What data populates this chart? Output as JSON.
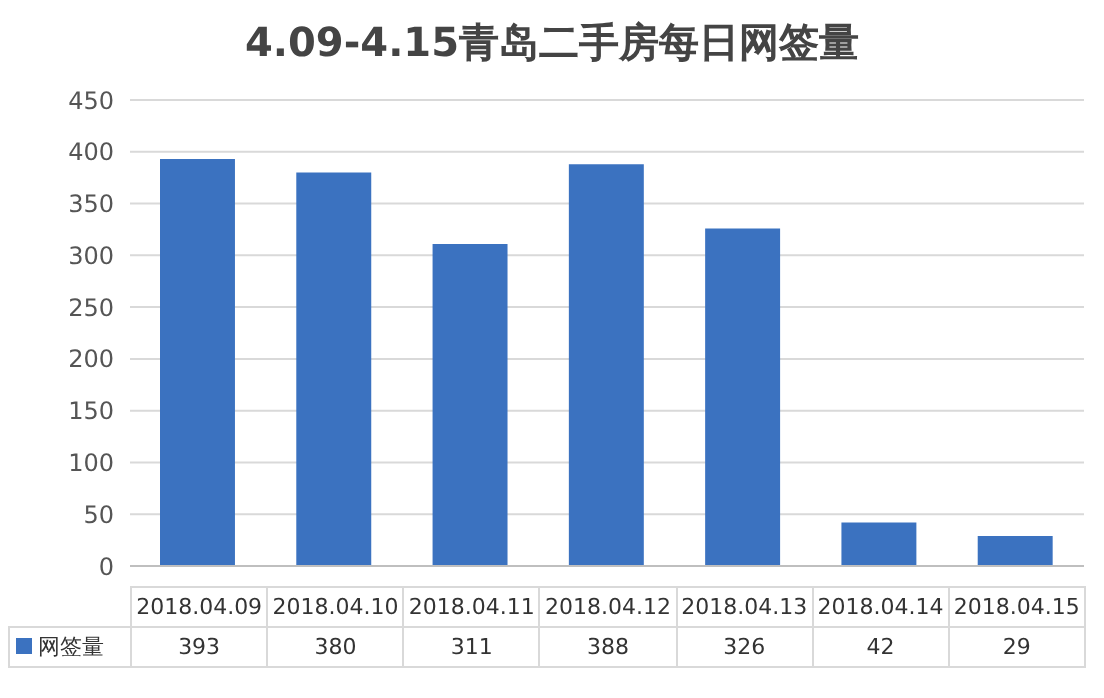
{
  "chart_data": {
    "type": "bar",
    "title": "4.09-4.15青岛二手房每日网签量",
    "categories": [
      "2018.04.09",
      "2018.04.10",
      "2018.04.11",
      "2018.04.12",
      "2018.04.13",
      "2018.04.14",
      "2018.04.15"
    ],
    "series": [
      {
        "name": "网签量",
        "color": "#3b72c0",
        "values": [
          393,
          380,
          311,
          388,
          326,
          42,
          29
        ]
      }
    ],
    "ylim": [
      0,
      450
    ],
    "yticks": [
      0,
      50,
      100,
      150,
      200,
      250,
      300,
      350,
      400,
      450
    ],
    "grid": "y",
    "legend": "bottom",
    "data_labels": true
  }
}
